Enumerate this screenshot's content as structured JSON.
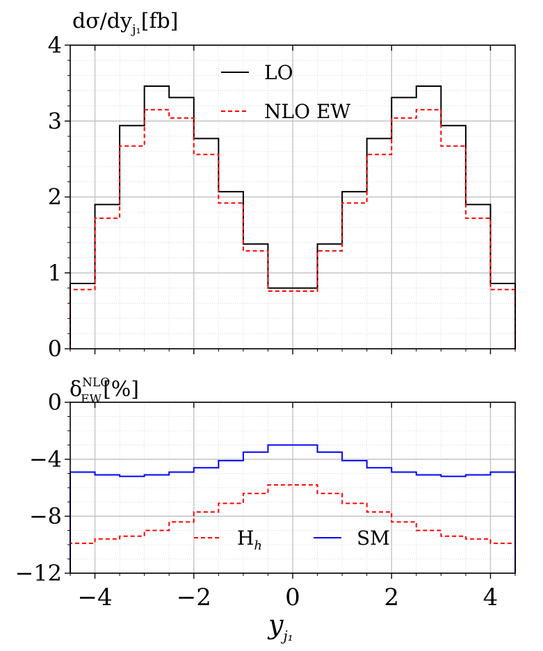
{
  "chart_data": [
    {
      "type": "line",
      "step": true,
      "title": "dσ/dy_j1 [fb]",
      "ylabel_parts": {
        "main": "dσ/dy",
        "sub": "j₁",
        "unit": "[fb]"
      },
      "xlim": [
        -4.5,
        4.5
      ],
      "ylim": [
        0,
        4
      ],
      "grid": true,
      "legend_position": "top-center",
      "x_ticks": [
        -4,
        -2,
        0,
        2,
        4
      ],
      "y_ticks": [
        0,
        1,
        2,
        3,
        4
      ],
      "y_tick_labels": [
        "0",
        "1",
        "2",
        "3",
        "4"
      ],
      "bin_edges": [
        -4.5,
        -4.0,
        -3.5,
        -3.0,
        -2.5,
        -2.0,
        -1.5,
        -1.0,
        -0.5,
        0.5,
        1.0,
        1.5,
        2.0,
        2.5,
        3.0,
        3.5,
        4.0,
        4.5
      ],
      "series": [
        {
          "name": "LO",
          "color": "#000000",
          "dash": "solid",
          "values": [
            0.86,
            1.9,
            2.94,
            3.46,
            3.31,
            2.77,
            2.07,
            1.38,
            0.8,
            1.38,
            2.07,
            2.77,
            3.31,
            3.46,
            2.94,
            1.9,
            0.86
          ]
        },
        {
          "name": "NLO EW",
          "color": "#ff0000",
          "dash": "dashed",
          "values": [
            0.78,
            1.72,
            2.67,
            3.15,
            3.04,
            2.56,
            1.92,
            1.29,
            0.76,
            1.29,
            1.92,
            2.56,
            3.04,
            3.15,
            2.67,
            1.72,
            0.78
          ]
        }
      ]
    },
    {
      "type": "line",
      "step": true,
      "title": "δ_EW^NLO [%]",
      "ylabel_parts": {
        "main": "δ",
        "sup": "NLO",
        "sub": "EW",
        "unit": "[%]"
      },
      "xlabel": "y_j1",
      "xlabel_parts": {
        "main": "y",
        "sub": "j₁"
      },
      "xlim": [
        -4.5,
        4.5
      ],
      "ylim": [
        -12,
        0
      ],
      "grid": true,
      "legend_position": "bottom-center",
      "x_ticks": [
        -4,
        -2,
        0,
        2,
        4
      ],
      "x_tick_labels": [
        "−4",
        "−2",
        "0",
        "2",
        "4"
      ],
      "y_ticks": [
        0,
        -4,
        -8,
        -12
      ],
      "y_tick_labels": [
        "0",
        "−4",
        "−8",
        "−12"
      ],
      "bin_edges": [
        -4.5,
        -4.0,
        -3.5,
        -3.0,
        -2.5,
        -2.0,
        -1.5,
        -1.0,
        -0.5,
        0.5,
        1.0,
        1.5,
        2.0,
        2.5,
        3.0,
        3.5,
        4.0,
        4.5
      ],
      "series": [
        {
          "name": "H_h",
          "color": "#ff0000",
          "dash": "dashed",
          "values": [
            -9.9,
            -9.6,
            -9.4,
            -9.0,
            -8.4,
            -7.7,
            -7.1,
            -6.4,
            -5.8,
            -6.4,
            -7.1,
            -7.7,
            -8.4,
            -9.0,
            -9.4,
            -9.6,
            -9.9
          ]
        },
        {
          "name": "SM",
          "color": "#0000ff",
          "dash": "solid",
          "values": [
            -4.9,
            -5.1,
            -5.2,
            -5.1,
            -4.9,
            -4.6,
            -4.1,
            -3.5,
            -3.0,
            -3.5,
            -4.1,
            -4.6,
            -4.9,
            -5.1,
            -5.2,
            -5.1,
            -4.9
          ]
        }
      ]
    }
  ]
}
